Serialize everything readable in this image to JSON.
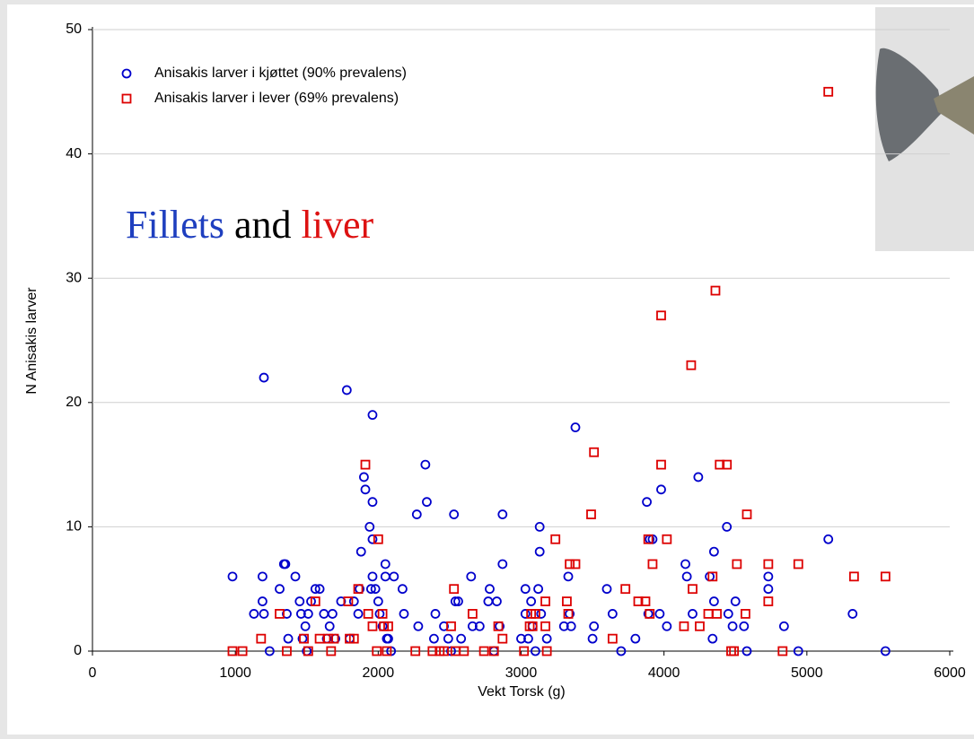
{
  "chart_data": {
    "type": "scatter",
    "xlabel": "Vekt Torsk (g)",
    "ylabel": "N Anisakis larver",
    "annotation": [
      {
        "text": "Fillets",
        "color": "#1f3fbf"
      },
      {
        "text": "and",
        "color": "#000000"
      },
      {
        "text": "liver",
        "color": "#dd1111"
      }
    ],
    "xlim": [
      0,
      6000
    ],
    "ylim": [
      0,
      50
    ],
    "xticks": [
      0,
      1000,
      2000,
      3000,
      4000,
      5000,
      6000
    ],
    "yticks": [
      0,
      10,
      20,
      30,
      40,
      50
    ],
    "grid": true,
    "legend": "top-left",
    "series": [
      {
        "name": "Anisakis larver i kjøttet (90% prevalens)",
        "color": "#0000cc",
        "marker": "circle",
        "x": [
          980,
          1200,
          1190,
          1190,
          1200,
          1130,
          1240,
          1310,
          1340,
          1350,
          1360,
          1370,
          1420,
          1450,
          1460,
          1470,
          1490,
          1500,
          1510,
          1530,
          1560,
          1590,
          1620,
          1640,
          1660,
          1680,
          1700,
          1740,
          1780,
          1800,
          1830,
          1860,
          1870,
          1880,
          1900,
          1910,
          1940,
          1950,
          1960,
          1960,
          1960,
          1960,
          1980,
          2000,
          2010,
          2030,
          2050,
          2050,
          2060,
          2070,
          2090,
          2110,
          2170,
          2180,
          2270,
          2280,
          2330,
          2340,
          2390,
          2400,
          2460,
          2490,
          2510,
          2530,
          2540,
          2560,
          2580,
          2650,
          2660,
          2710,
          2770,
          2780,
          2810,
          2830,
          2850,
          2870,
          2870,
          3000,
          3030,
          3030,
          3050,
          3070,
          3080,
          3100,
          3120,
          3130,
          3130,
          3140,
          3180,
          3300,
          3330,
          3340,
          3350,
          3380,
          3500,
          3510,
          3600,
          3640,
          3700,
          3800,
          3880,
          3890,
          3900,
          3920,
          3980,
          3970,
          4020,
          4150,
          4160,
          4200,
          4240,
          4320,
          4340,
          4350,
          4350,
          4440,
          4450,
          4480,
          4500,
          4560,
          4580,
          4730,
          4730,
          4840,
          4940,
          5150,
          5320,
          5550
        ],
        "values": [
          6,
          22,
          4,
          6,
          3,
          3,
          0,
          5,
          7,
          7,
          3,
          1,
          6,
          4,
          3,
          1,
          2,
          0,
          3,
          4,
          5,
          5,
          3,
          1,
          2,
          3,
          1,
          4,
          21,
          1,
          4,
          3,
          5,
          8,
          14,
          13,
          10,
          5,
          19,
          9,
          12,
          6,
          5,
          4,
          3,
          2,
          7,
          6,
          1,
          1,
          0,
          6,
          5,
          3,
          11,
          2,
          15,
          12,
          1,
          3,
          2,
          1,
          0,
          11,
          4,
          4,
          1,
          6,
          2,
          2,
          4,
          5,
          0,
          4,
          2,
          7,
          11,
          1,
          3,
          5,
          1,
          4,
          2,
          0,
          5,
          10,
          8,
          3,
          1,
          2,
          6,
          3,
          2,
          18,
          1,
          2,
          5,
          3,
          0,
          1,
          12,
          3,
          9,
          9,
          13,
          3,
          2,
          7,
          6,
          3,
          14,
          6,
          1,
          4,
          8,
          10,
          3,
          2,
          4,
          2,
          0,
          6,
          5,
          2,
          0,
          9,
          3,
          0
        ]
      },
      {
        "name": "Anisakis larver i lever (69% prevalens)",
        "color": "#dd0000",
        "marker": "square",
        "x": [
          980,
          1050,
          1180,
          1310,
          1360,
          1480,
          1510,
          1560,
          1590,
          1650,
          1670,
          1690,
          1790,
          1800,
          1830,
          1860,
          1910,
          1930,
          1960,
          1990,
          2000,
          2030,
          2040,
          2060,
          2070,
          2260,
          2380,
          2430,
          2460,
          2510,
          2530,
          2540,
          2600,
          2660,
          2740,
          2810,
          2840,
          2870,
          3020,
          3060,
          3070,
          3080,
          3100,
          3170,
          3170,
          3180,
          3240,
          3320,
          3330,
          3340,
          3380,
          3490,
          3510,
          3640,
          3730,
          3820,
          3870,
          3890,
          3900,
          3920,
          3980,
          3980,
          4020,
          4140,
          4190,
          4200,
          4250,
          4310,
          4340,
          4360,
          4370,
          4390,
          4440,
          4470,
          4490,
          4510,
          4570,
          4580,
          4730,
          4730,
          4830,
          4940,
          5150,
          5330,
          5550
        ],
        "values": [
          0,
          0,
          1,
          3,
          0,
          1,
          0,
          4,
          1,
          1,
          0,
          1,
          4,
          1,
          1,
          5,
          15,
          3,
          2,
          0,
          9,
          3,
          2,
          0,
          2,
          0,
          0,
          0,
          0,
          2,
          5,
          0,
          0,
          3,
          0,
          0,
          2,
          1,
          0,
          2,
          3,
          2,
          3,
          2,
          4,
          0,
          9,
          4,
          3,
          7,
          7,
          11,
          16,
          1,
          5,
          4,
          4,
          9,
          3,
          7,
          27,
          15,
          9,
          2,
          23,
          5,
          2,
          3,
          6,
          29,
          3,
          15,
          15,
          0,
          0,
          7,
          3,
          11,
          7,
          4,
          0,
          7,
          45,
          6,
          6
        ]
      }
    ]
  }
}
